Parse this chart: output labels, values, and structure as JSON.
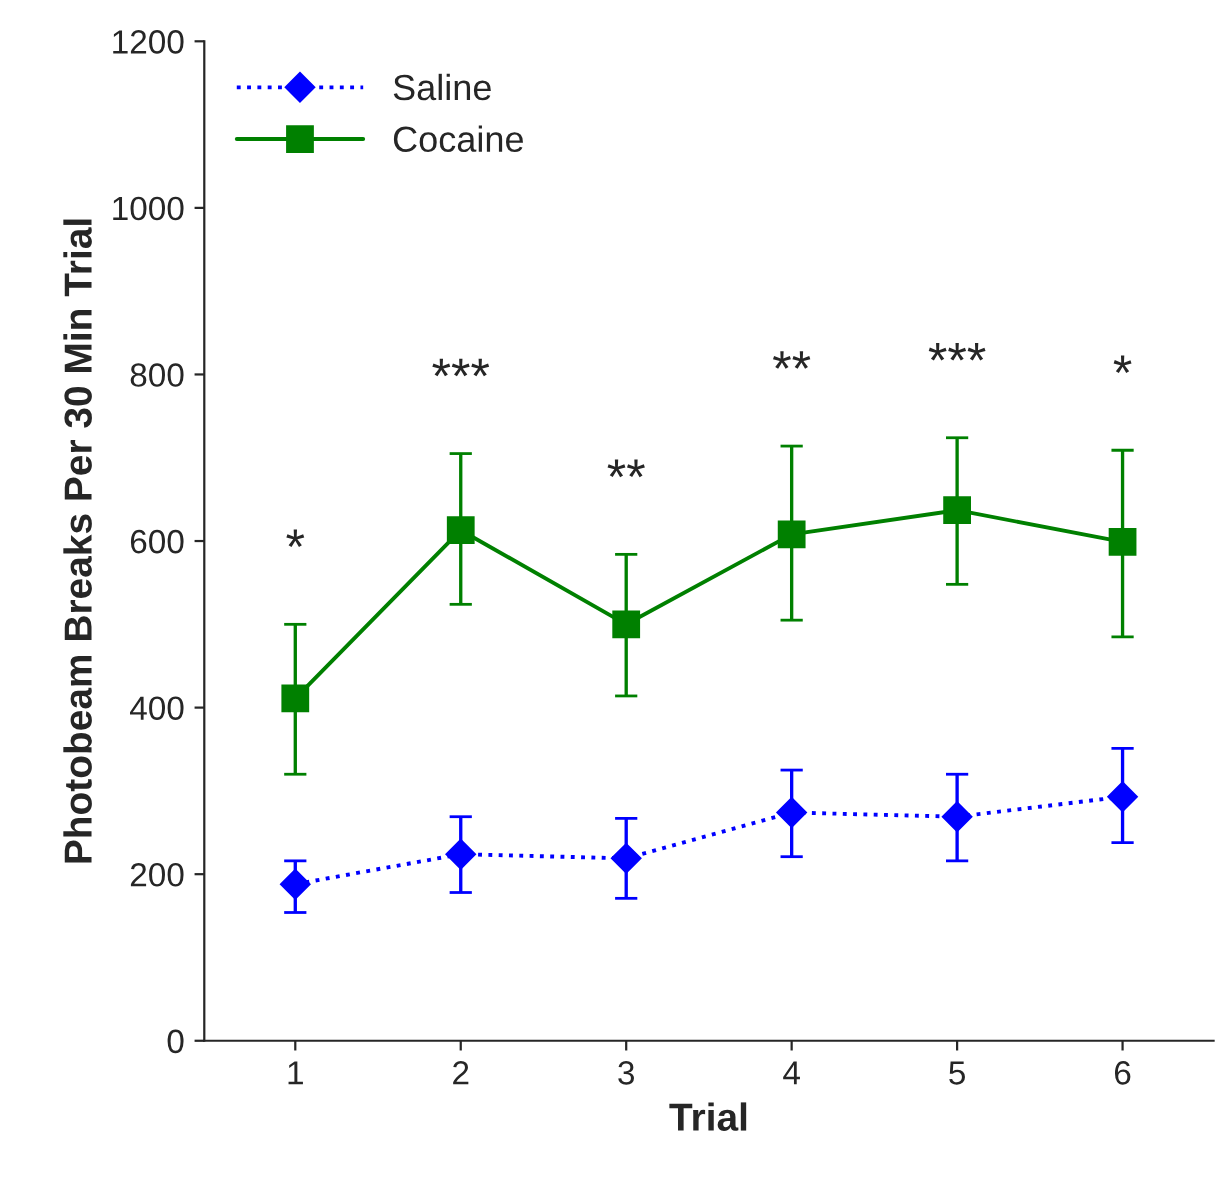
{
  "chart_data": {
    "type": "line",
    "xlabel": "Trial",
    "ylabel": "Photobeam Breaks Per 30 Min Trial",
    "categories": [
      "1",
      "2",
      "3",
      "4",
      "5",
      "6"
    ],
    "series": [
      {
        "name": "Saline",
        "color": "#0000ff",
        "marker": "diamond",
        "line_style": "dotted",
        "values": [
          188,
          224,
          219,
          274,
          269,
          293
        ],
        "errors": [
          [
            154,
            216
          ],
          [
            178,
            269
          ],
          [
            171,
            267
          ],
          [
            221,
            325
          ],
          [
            216,
            320
          ],
          [
            238,
            351
          ]
        ]
      },
      {
        "name": "Cocaine",
        "color": "#008000",
        "marker": "square",
        "line_style": "solid",
        "values": [
          411,
          613,
          500,
          608,
          637,
          599
        ],
        "errors": [
          [
            320,
            500
          ],
          [
            524,
            705
          ],
          [
            414,
            584
          ],
          [
            505,
            714
          ],
          [
            548,
            724
          ],
          [
            485,
            709
          ]
        ]
      }
    ],
    "ylim": [
      0,
      1200
    ],
    "yticks": [
      0,
      200,
      400,
      600,
      800,
      1000,
      1200
    ],
    "grid": false,
    "legend": "top left",
    "annotations": [
      "*",
      "***",
      "**",
      "**",
      "***",
      "*"
    ]
  }
}
